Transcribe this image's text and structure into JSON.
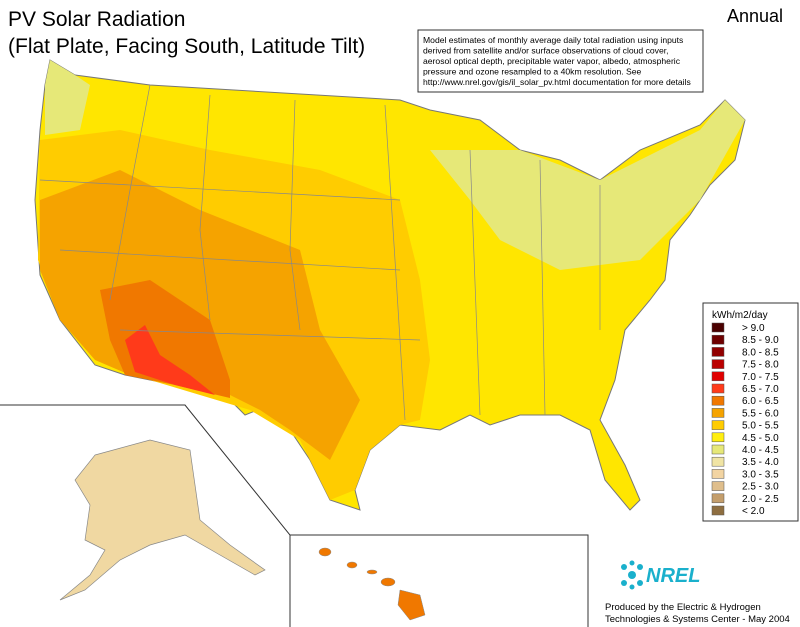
{
  "header": {
    "title_lines": [
      "PV Solar Radiation",
      "(Flat Plate, Facing South, Latitude Tilt)"
    ],
    "period": "Annual"
  },
  "note": {
    "lines": [
      "Model estimates of monthly average daily total radiation using inputs",
      "derived from satellite and/or surface observations of cloud cover,",
      "aerosol optical depth, precipitable water vapor, albedo, atmospheric",
      "pressure and ozone resampled to a 40km resolution.  See",
      "http://www.nrel.gov/gis/il_solar_pv.html documentation for more details"
    ]
  },
  "legend": {
    "title": "kWh/m2/day",
    "items": [
      {
        "label": "> 9.0",
        "color": "#4a0000"
      },
      {
        "label": "8.5 - 9.0",
        "color": "#6e0000"
      },
      {
        "label": "8.0 - 8.5",
        "color": "#920000"
      },
      {
        "label": "7.5 - 8.0",
        "color": "#bb0000"
      },
      {
        "label": "7.0 - 7.5",
        "color": "#e00000"
      },
      {
        "label": "6.5 - 7.0",
        "color": "#ff3a1a"
      },
      {
        "label": "6.0 - 6.5",
        "color": "#f07800"
      },
      {
        "label": "5.5 - 6.0",
        "color": "#f5a300"
      },
      {
        "label": "5.0 - 5.5",
        "color": "#ffcc00"
      },
      {
        "label": "4.5 - 5.0",
        "color": "#ffee11"
      },
      {
        "label": "4.0 - 4.5",
        "color": "#e6e878"
      },
      {
        "label": "3.5 - 4.0",
        "color": "#f0e4a4"
      },
      {
        "label": "3.0 - 3.5",
        "color": "#f2d4a2"
      },
      {
        "label": "2.5 - 3.0",
        "color": "#dfbe8c"
      },
      {
        "label": "2.0 - 2.5",
        "color": "#c49e6c"
      },
      {
        "label": "< 2.0",
        "color": "#8e6e40"
      }
    ]
  },
  "logo": {
    "text": "NREL"
  },
  "footer": {
    "credit_lines": [
      "Produced by the Electric & Hydrogen",
      "Technologies & Systems Center - May 2004"
    ]
  }
}
